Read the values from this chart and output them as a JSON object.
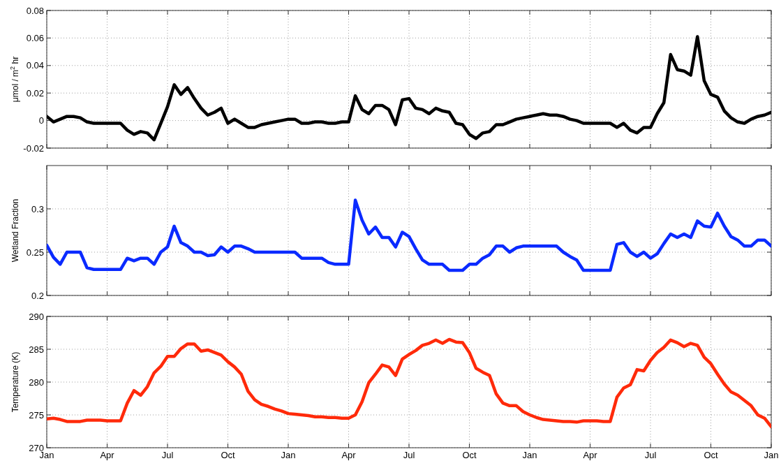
{
  "chart_data": [
    {
      "type": "line",
      "ylabel": "μmol / m$^{2}$ hr",
      "tick_labels": "y",
      "grid": true,
      "ylim": [
        -0.02,
        0.08
      ],
      "yticks": [
        -0.02,
        0,
        0.02,
        0.04,
        0.06,
        0.08
      ],
      "categories": [
        null,
        null,
        null,
        null,
        null,
        null,
        null,
        null,
        null,
        null,
        null,
        null,
        null,
        null,
        null,
        null,
        null,
        null,
        null,
        null,
        null,
        null,
        null,
        null,
        null,
        null,
        null,
        null,
        null,
        null,
        null,
        null,
        null,
        null,
        null,
        null,
        null,
        null,
        null,
        null,
        null,
        null,
        null,
        null,
        null,
        null,
        null,
        null,
        null,
        null,
        null,
        null,
        null,
        null,
        null,
        null,
        null,
        null,
        null,
        null,
        null,
        null,
        null,
        null,
        null,
        null,
        null,
        null,
        null,
        null,
        null,
        null,
        null,
        null,
        null,
        null,
        null,
        null,
        null,
        null,
        null,
        null,
        null,
        null,
        null,
        null,
        null,
        null,
        null,
        null,
        null,
        null,
        null,
        null,
        null,
        null,
        null,
        null,
        null,
        null,
        null,
        null,
        null,
        null,
        null,
        null,
        null,
        null,
        null
      ],
      "series": [
        {
          "color": "#000000",
          "values": [
            0.003,
            -0.001,
            0.001,
            0.003,
            0.003,
            0.002,
            -0.001,
            -0.002,
            -0.002,
            -0.002,
            -0.002,
            -0.002,
            -0.007,
            -0.01,
            -0.008,
            -0.009,
            -0.014,
            -0.002,
            0.01,
            0.026,
            0.019,
            0.024,
            0.016,
            0.009,
            0.004,
            0.006,
            0.009,
            -0.002,
            0.001,
            -0.002,
            -0.005,
            -0.005,
            -0.003,
            -0.002,
            -0.001,
            0,
            0.001,
            0.001,
            -0.002,
            -0.002,
            -0.001,
            -0.001,
            -0.002,
            -0.002,
            -0.001,
            -0.001,
            0.018,
            0.008,
            0.005,
            0.011,
            0.011,
            0.008,
            -0.003,
            0.015,
            0.016,
            0.009,
            0.008,
            0.005,
            0.009,
            0.007,
            0.006,
            -0.002,
            -0.003,
            -0.01,
            -0.013,
            -0.009,
            -0.008,
            -0.003,
            -0.003,
            -0.001,
            0.001,
            0.002,
            0.003,
            0.004,
            0.005,
            0.004,
            0.004,
            0.003,
            0.001,
            0,
            -0.002,
            -0.002,
            -0.002,
            -0.002,
            -0.002,
            -0.005,
            -0.002,
            -0.007,
            -0.009,
            -0.005,
            -0.005,
            0.005,
            0.013,
            0.048,
            0.037,
            0.036,
            0.033,
            0.061,
            0.029,
            0.019,
            0.017,
            0.007,
            0.002,
            -0.001,
            -0.002,
            0.001,
            0.003,
            0.004,
            0.006
          ]
        }
      ]
    },
    {
      "type": "line",
      "ylabel": "Wetland Fraction",
      "tick_labels": "y",
      "grid": true,
      "ylim": [
        0.2,
        0.35
      ],
      "yticks": [
        0.2,
        0.25,
        0.3
      ],
      "categories": [
        null,
        null,
        null,
        null,
        null,
        null,
        null,
        null,
        null,
        null,
        null,
        null,
        null,
        null,
        null,
        null,
        null,
        null,
        null,
        null,
        null,
        null,
        null,
        null,
        null,
        null,
        null,
        null,
        null,
        null,
        null,
        null,
        null,
        null,
        null,
        null,
        null,
        null,
        null,
        null,
        null,
        null,
        null,
        null,
        null,
        null,
        null,
        null,
        null,
        null,
        null,
        null,
        null,
        null,
        null,
        null,
        null,
        null,
        null,
        null,
        null,
        null,
        null,
        null,
        null,
        null,
        null,
        null,
        null,
        null,
        null,
        null,
        null,
        null,
        null,
        null,
        null,
        null,
        null,
        null,
        null,
        null,
        null,
        null,
        null,
        null,
        null,
        null,
        null,
        null,
        null,
        null,
        null,
        null,
        null,
        null,
        null,
        null,
        null,
        null,
        null,
        null,
        null,
        null,
        null,
        null,
        null,
        null,
        null
      ],
      "series": [
        {
          "color": "#0a2aff",
          "values": [
            0.258,
            0.244,
            0.236,
            0.25,
            0.25,
            0.25,
            0.232,
            0.23,
            0.23,
            0.23,
            0.23,
            0.23,
            0.243,
            0.24,
            0.243,
            0.243,
            0.236,
            0.25,
            0.256,
            0.28,
            0.261,
            0.257,
            0.25,
            0.25,
            0.246,
            0.247,
            0.256,
            0.25,
            0.257,
            0.257,
            0.254,
            0.25,
            0.25,
            0.25,
            0.25,
            0.25,
            0.25,
            0.25,
            0.243,
            0.243,
            0.243,
            0.243,
            0.238,
            0.236,
            0.236,
            0.236,
            0.31,
            0.287,
            0.271,
            0.279,
            0.267,
            0.267,
            0.256,
            0.273,
            0.268,
            0.254,
            0.241,
            0.236,
            0.236,
            0.236,
            0.229,
            0.229,
            0.229,
            0.236,
            0.236,
            0.243,
            0.247,
            0.257,
            0.257,
            0.25,
            0.255,
            0.257,
            0.257,
            0.257,
            0.257,
            0.257,
            0.257,
            0.25,
            0.245,
            0.241,
            0.229,
            0.229,
            0.229,
            0.229,
            0.229,
            0.259,
            0.261,
            0.25,
            0.245,
            0.25,
            0.243,
            0.248,
            0.26,
            0.271,
            0.267,
            0.271,
            0.267,
            0.286,
            0.28,
            0.279,
            0.295,
            0.28,
            0.268,
            0.264,
            0.257,
            0.257,
            0.264,
            0.264,
            0.257
          ]
        }
      ]
    },
    {
      "type": "line",
      "ylabel": "Temperature (K)",
      "grid": true,
      "ylim": [
        270,
        290
      ],
      "yticks": [
        270,
        275,
        280,
        285,
        290
      ],
      "categories": [
        "Jan",
        null,
        null,
        null,
        null,
        null,
        null,
        null,
        null,
        "Apr",
        null,
        null,
        null,
        null,
        null,
        null,
        null,
        null,
        "Jul",
        null,
        null,
        null,
        null,
        null,
        null,
        null,
        null,
        "Oct",
        null,
        null,
        null,
        null,
        null,
        null,
        null,
        null,
        "Jan",
        null,
        null,
        null,
        null,
        null,
        null,
        null,
        null,
        "Apr",
        null,
        null,
        null,
        null,
        null,
        null,
        null,
        null,
        "Jul",
        null,
        null,
        null,
        null,
        null,
        null,
        null,
        null,
        "Oct",
        null,
        null,
        null,
        null,
        null,
        null,
        null,
        null,
        "Jan",
        null,
        null,
        null,
        null,
        null,
        null,
        null,
        null,
        "Apr",
        null,
        null,
        null,
        null,
        null,
        null,
        null,
        null,
        "Jul",
        null,
        null,
        null,
        null,
        null,
        null,
        null,
        null,
        "Oct",
        null,
        null,
        null,
        null,
        null,
        null,
        null,
        null,
        "Jan"
      ],
      "series": [
        {
          "color": "#ff2a0a",
          "values": [
            274.4,
            274.5,
            274.3,
            274.0,
            274.0,
            274.0,
            274.2,
            274.2,
            274.2,
            274.1,
            274.1,
            274.1,
            276.8,
            278.7,
            278.0,
            279.3,
            281.4,
            282.4,
            283.9,
            283.9,
            285.1,
            285.8,
            285.8,
            284.7,
            284.9,
            284.5,
            284.1,
            283.1,
            282.3,
            281.2,
            278.6,
            277.3,
            276.6,
            276.3,
            275.9,
            275.6,
            275.2,
            275.1,
            275.0,
            274.9,
            274.7,
            274.7,
            274.6,
            274.6,
            274.5,
            274.5,
            275.0,
            277.0,
            279.9,
            281.2,
            282.6,
            282.3,
            281.0,
            283.5,
            284.2,
            284.8,
            285.6,
            285.9,
            286.4,
            285.9,
            286.5,
            286.1,
            286.0,
            284.5,
            282.1,
            281.5,
            281.0,
            278.2,
            276.8,
            276.4,
            276.4,
            275.5,
            275.0,
            274.6,
            274.3,
            274.2,
            274.1,
            274.0,
            274.0,
            273.9,
            274.1,
            274.1,
            274.1,
            274.0,
            274.0,
            277.7,
            279.1,
            279.6,
            281.9,
            281.7,
            283.3,
            284.5,
            285.3,
            286.4,
            286.0,
            285.4,
            285.9,
            285.6,
            283.8,
            282.8,
            281.2,
            279.7,
            278.5,
            278.0,
            277.2,
            276.4,
            275.0,
            274.5,
            273.2
          ]
        }
      ]
    }
  ]
}
